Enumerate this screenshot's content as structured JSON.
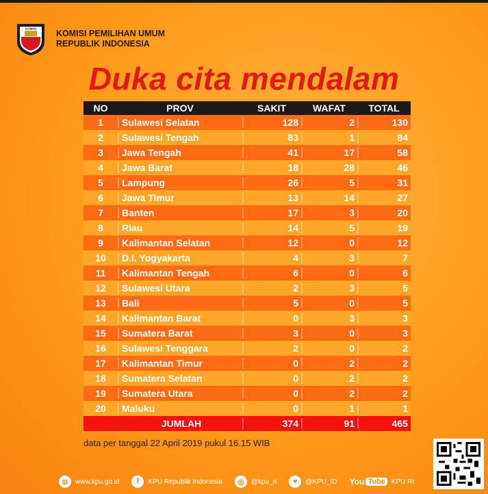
{
  "header": {
    "org_line1": "KOMISI PEMILIHAN UMUM",
    "org_line2": "REPUBLIK INDONESIA",
    "logo_text": "KOMISI"
  },
  "headline": "Duka cita mendalam",
  "table": {
    "columns": [
      "NO",
      "PROV",
      "SAKIT",
      "WAFAT",
      "TOTAL"
    ],
    "rows": [
      {
        "no": "1",
        "prov": "Sulawesi Selatan",
        "sakit": "128",
        "wafat": "2",
        "total": "130"
      },
      {
        "no": "2",
        "prov": "Sulawesi Tengah",
        "sakit": "83",
        "wafat": "1",
        "total": "84"
      },
      {
        "no": "3",
        "prov": "Jawa Tengah",
        "sakit": "41",
        "wafat": "17",
        "total": "58"
      },
      {
        "no": "4",
        "prov": "Jawa Barat",
        "sakit": "18",
        "wafat": "28",
        "total": "46"
      },
      {
        "no": "5",
        "prov": "Lampung",
        "sakit": "26",
        "wafat": "5",
        "total": "31"
      },
      {
        "no": "6",
        "prov": "Jawa Timur",
        "sakit": "13",
        "wafat": "14",
        "total": "27"
      },
      {
        "no": "7",
        "prov": "Banten",
        "sakit": "17",
        "wafat": "3",
        "total": "20"
      },
      {
        "no": "8",
        "prov": "Riau",
        "sakit": "14",
        "wafat": "5",
        "total": "19"
      },
      {
        "no": "9",
        "prov": "Kalimantan Selatan",
        "sakit": "12",
        "wafat": "0",
        "total": "12"
      },
      {
        "no": "10",
        "prov": "D.I. Yogyakarta",
        "sakit": "4",
        "wafat": "3",
        "total": "7"
      },
      {
        "no": "11",
        "prov": "Kalimantan Tengah",
        "sakit": "6",
        "wafat": "0",
        "total": "6"
      },
      {
        "no": "12",
        "prov": "Sulawesi Utara",
        "sakit": "2",
        "wafat": "3",
        "total": "5"
      },
      {
        "no": "13",
        "prov": "Bali",
        "sakit": "5",
        "wafat": "0",
        "total": "5"
      },
      {
        "no": "14",
        "prov": "Kalimantan Barat",
        "sakit": "0",
        "wafat": "3",
        "total": "3"
      },
      {
        "no": "15",
        "prov": "Sumatera Barat",
        "sakit": "3",
        "wafat": "0",
        "total": "3"
      },
      {
        "no": "16",
        "prov": "Sulawesi Tenggara",
        "sakit": "2",
        "wafat": "0",
        "total": "2"
      },
      {
        "no": "17",
        "prov": "Kalimantan Timur",
        "sakit": "0",
        "wafat": "2",
        "total": "2"
      },
      {
        "no": "18",
        "prov": "Sumatera Selatan",
        "sakit": "0",
        "wafat": "2",
        "total": "2"
      },
      {
        "no": "19",
        "prov": "Sumatera Utara",
        "sakit": "0",
        "wafat": "2",
        "total": "2"
      },
      {
        "no": "20",
        "prov": "Maluku",
        "sakit": "0",
        "wafat": "1",
        "total": "1"
      }
    ],
    "total": {
      "label": "JUMLAH",
      "sakit": "374",
      "wafat": "91",
      "total": "465"
    }
  },
  "note": "data per tanggal 22 April 2019 pukul 16.15 WIB",
  "footer": {
    "website": "www.kpu.go.id",
    "facebook": "KPU Republik Indonesia",
    "instagram": "@kpu_ri",
    "twitter": "@KPU_ID",
    "youtube_brand_you": "You",
    "youtube_brand_tube": "Tube",
    "youtube": "KPU RI"
  },
  "colors": {
    "headline": "#e01a14",
    "row_dark": "#ff6a12",
    "row_light": "#ffa628",
    "total_row": "#f2120e",
    "header_row": "#1a1a1a"
  }
}
